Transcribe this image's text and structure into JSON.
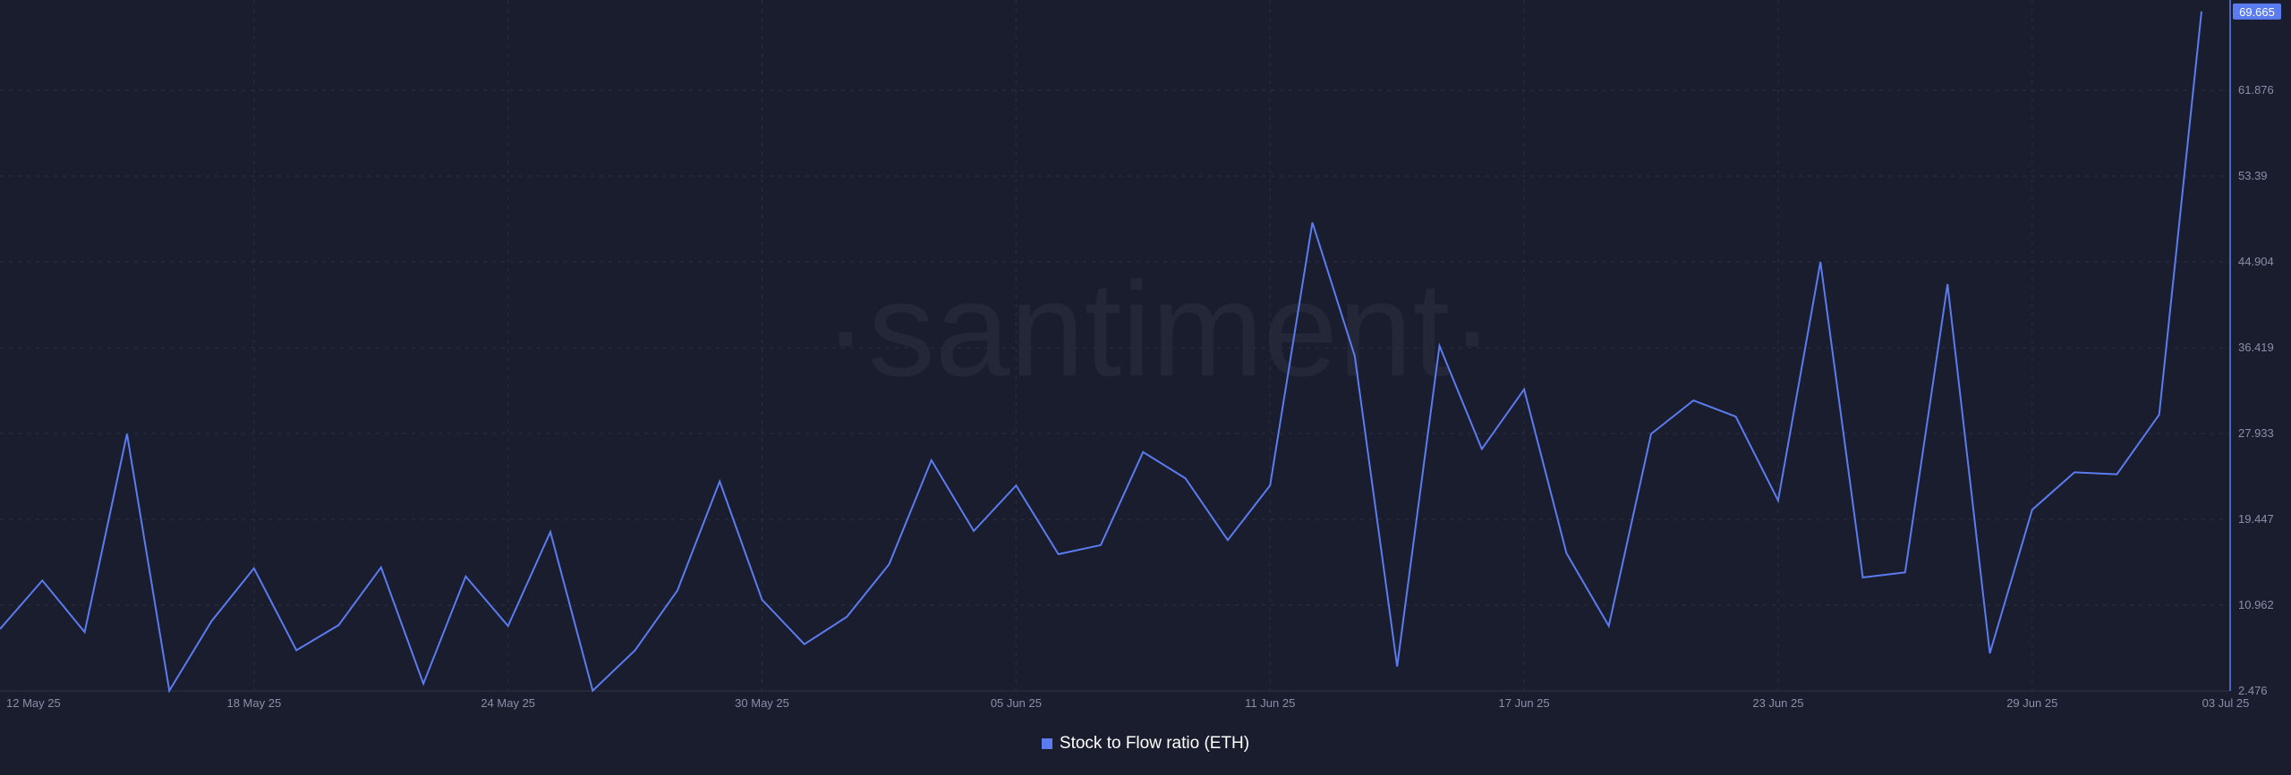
{
  "watermark": "·santiment·",
  "legend": {
    "label": "Stock to Flow ratio (ETH)"
  },
  "colors": {
    "background": "#1a1d2e",
    "line": "#5b7cf0",
    "grid": "#2a2e44",
    "tick_text": "#8a8fa8",
    "badge_bg": "#5b7cf0",
    "badge_text": "#ffffff"
  },
  "chart_data": {
    "type": "line",
    "title": "",
    "xlabel": "",
    "ylabel": "",
    "x_tick_labels": [
      "12 May 25",
      "18 May 25",
      "24 May 25",
      "30 May 25",
      "05 Jun 25",
      "11 Jun 25",
      "17 Jun 25",
      "23 Jun 25",
      "29 Jun 25",
      "03 Jul 25"
    ],
    "y_tick_labels": [
      "2.476",
      "10.962",
      "19.447",
      "27.933",
      "36.419",
      "44.904",
      "53.39",
      "61.876"
    ],
    "ylim": [
      2.476,
      70.8
    ],
    "grid": true,
    "legend_position": "bottom-center",
    "last_value_label": "69.665",
    "series": [
      {
        "name": "Stock to Flow ratio (ETH)",
        "x": [
          "2025-05-12",
          "2025-05-13",
          "2025-05-14",
          "2025-05-15",
          "2025-05-16",
          "2025-05-17",
          "2025-05-18",
          "2025-05-19",
          "2025-05-20",
          "2025-05-21",
          "2025-05-22",
          "2025-05-23",
          "2025-05-24",
          "2025-05-25",
          "2025-05-26",
          "2025-05-27",
          "2025-05-28",
          "2025-05-29",
          "2025-05-30",
          "2025-05-31",
          "2025-06-01",
          "2025-06-02",
          "2025-06-03",
          "2025-06-04",
          "2025-06-05",
          "2025-06-06",
          "2025-06-07",
          "2025-06-08",
          "2025-06-09",
          "2025-06-10",
          "2025-06-11",
          "2025-06-12",
          "2025-06-13",
          "2025-06-14",
          "2025-06-15",
          "2025-06-16",
          "2025-06-17",
          "2025-06-18",
          "2025-06-19",
          "2025-06-20",
          "2025-06-21",
          "2025-06-22",
          "2025-06-23",
          "2025-06-24",
          "2025-06-25",
          "2025-06-26",
          "2025-06-27",
          "2025-06-28",
          "2025-06-29",
          "2025-06-30",
          "2025-07-01",
          "2025-07-02",
          "2025-07-03"
        ],
        "values": [
          8.6,
          13.4,
          8.3,
          27.9,
          2.5,
          9.4,
          14.6,
          6.5,
          9.0,
          14.7,
          3.2,
          13.8,
          8.9,
          18.2,
          2.5,
          6.5,
          12.4,
          23.2,
          11.5,
          7.1,
          9.8,
          15.0,
          25.3,
          18.3,
          22.8,
          16.0,
          16.9,
          26.1,
          23.5,
          17.4,
          22.8,
          48.8,
          35.6,
          4.9,
          36.6,
          26.4,
          32.3,
          16.1,
          8.9,
          27.9,
          31.2,
          29.6,
          21.3,
          44.9,
          13.7,
          14.2,
          42.7,
          6.2,
          20.4,
          24.1,
          23.9,
          29.8,
          69.665
        ]
      }
    ]
  }
}
